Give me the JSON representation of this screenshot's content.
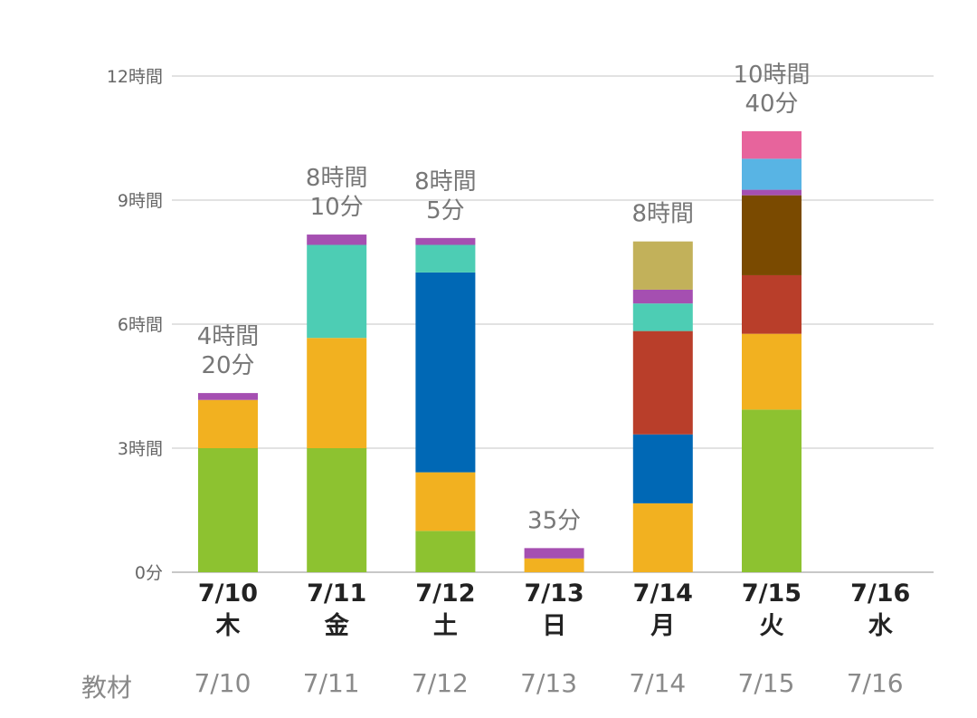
{
  "chart_data": {
    "type": "bar",
    "stacked": true,
    "title": "",
    "xlabel": "",
    "ylabel": "",
    "ylim": [
      0,
      720
    ],
    "value_unit": "minutes",
    "y_ticks": [
      {
        "value": 0,
        "label": "0分"
      },
      {
        "value": 180,
        "label": "3時間"
      },
      {
        "value": 360,
        "label": "6時間"
      },
      {
        "value": 540,
        "label": "9時間"
      },
      {
        "value": 720,
        "label": "12時間"
      }
    ],
    "grid": true,
    "categories": [
      {
        "date": "7/10",
        "day": "木"
      },
      {
        "date": "7/11",
        "day": "金"
      },
      {
        "date": "7/12",
        "day": "土"
      },
      {
        "date": "7/13",
        "day": "日"
      },
      {
        "date": "7/14",
        "day": "月"
      },
      {
        "date": "7/15",
        "day": "火"
      },
      {
        "date": "7/16",
        "day": "水"
      }
    ],
    "totals": [
      {
        "lines": [
          "4時間",
          "20分"
        ],
        "minutes": 260
      },
      {
        "lines": [
          "8時間",
          "10分"
        ],
        "minutes": 490
      },
      {
        "lines": [
          "8時間",
          "5分"
        ],
        "minutes": 485
      },
      {
        "lines": [
          "35分"
        ],
        "minutes": 35
      },
      {
        "lines": [
          "8時間"
        ],
        "minutes": 480
      },
      {
        "lines": [
          "10時間",
          "40分"
        ],
        "minutes": 640
      },
      {
        "lines": [],
        "minutes": 0
      }
    ],
    "series": [
      {
        "color": "#8dc230",
        "values": [
          180,
          180,
          60,
          0,
          0,
          236,
          0
        ]
      },
      {
        "color": "#f2b120",
        "values": [
          70,
          160,
          85,
          20,
          100,
          110,
          0
        ]
      },
      {
        "color": "#0068b5",
        "values": [
          0,
          0,
          290,
          0,
          100,
          0,
          0
        ]
      },
      {
        "color": "#b93e2a",
        "values": [
          0,
          0,
          0,
          0,
          150,
          85,
          0
        ]
      },
      {
        "color": "#7a4a00",
        "values": [
          0,
          0,
          0,
          0,
          0,
          116,
          0
        ]
      },
      {
        "color": "#4dcdb4",
        "values": [
          0,
          135,
          40,
          0,
          40,
          0,
          0
        ]
      },
      {
        "color": "#a54fb1",
        "values": [
          10,
          15,
          10,
          15,
          20,
          8,
          0
        ]
      },
      {
        "color": "#c2b15a",
        "values": [
          0,
          0,
          0,
          0,
          70,
          0,
          0
        ]
      },
      {
        "color": "#58b4e4",
        "values": [
          0,
          0,
          0,
          0,
          0,
          45,
          0
        ]
      },
      {
        "color": "#e7649c",
        "values": [
          0,
          0,
          0,
          0,
          0,
          40,
          0
        ]
      }
    ]
  },
  "footer": {
    "label": "教材",
    "cells": [
      "7/10",
      "7/11",
      "7/12",
      "7/13",
      "7/14",
      "7/15",
      "7/16"
    ]
  }
}
